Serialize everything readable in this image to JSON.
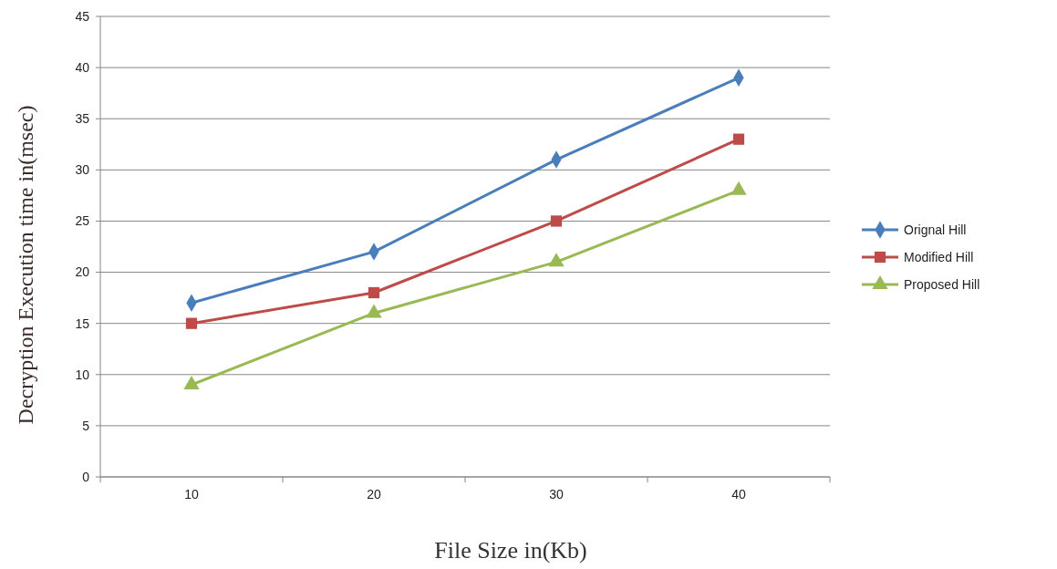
{
  "chart_data": {
    "type": "line",
    "xlabel": "File Size in(Kb)",
    "ylabel": "Decryption Execution time in(msec)",
    "categories": [
      "10",
      "20",
      "30",
      "40"
    ],
    "series": [
      {
        "name": "Orignal Hill",
        "color": "#4a7ebb",
        "marker": "diamond",
        "values": [
          17,
          22,
          31,
          39
        ]
      },
      {
        "name": "Modified Hill",
        "color": "#be4b48",
        "marker": "square",
        "values": [
          15,
          18,
          25,
          33
        ]
      },
      {
        "name": "Proposed Hill",
        "color": "#98b954",
        "marker": "triangle",
        "values": [
          9,
          16,
          21,
          28
        ]
      }
    ],
    "ylim": [
      0,
      45
    ],
    "yticks": [
      0,
      5,
      10,
      15,
      20,
      25,
      30,
      35,
      40,
      45
    ],
    "grid": "y",
    "legend": "right"
  }
}
